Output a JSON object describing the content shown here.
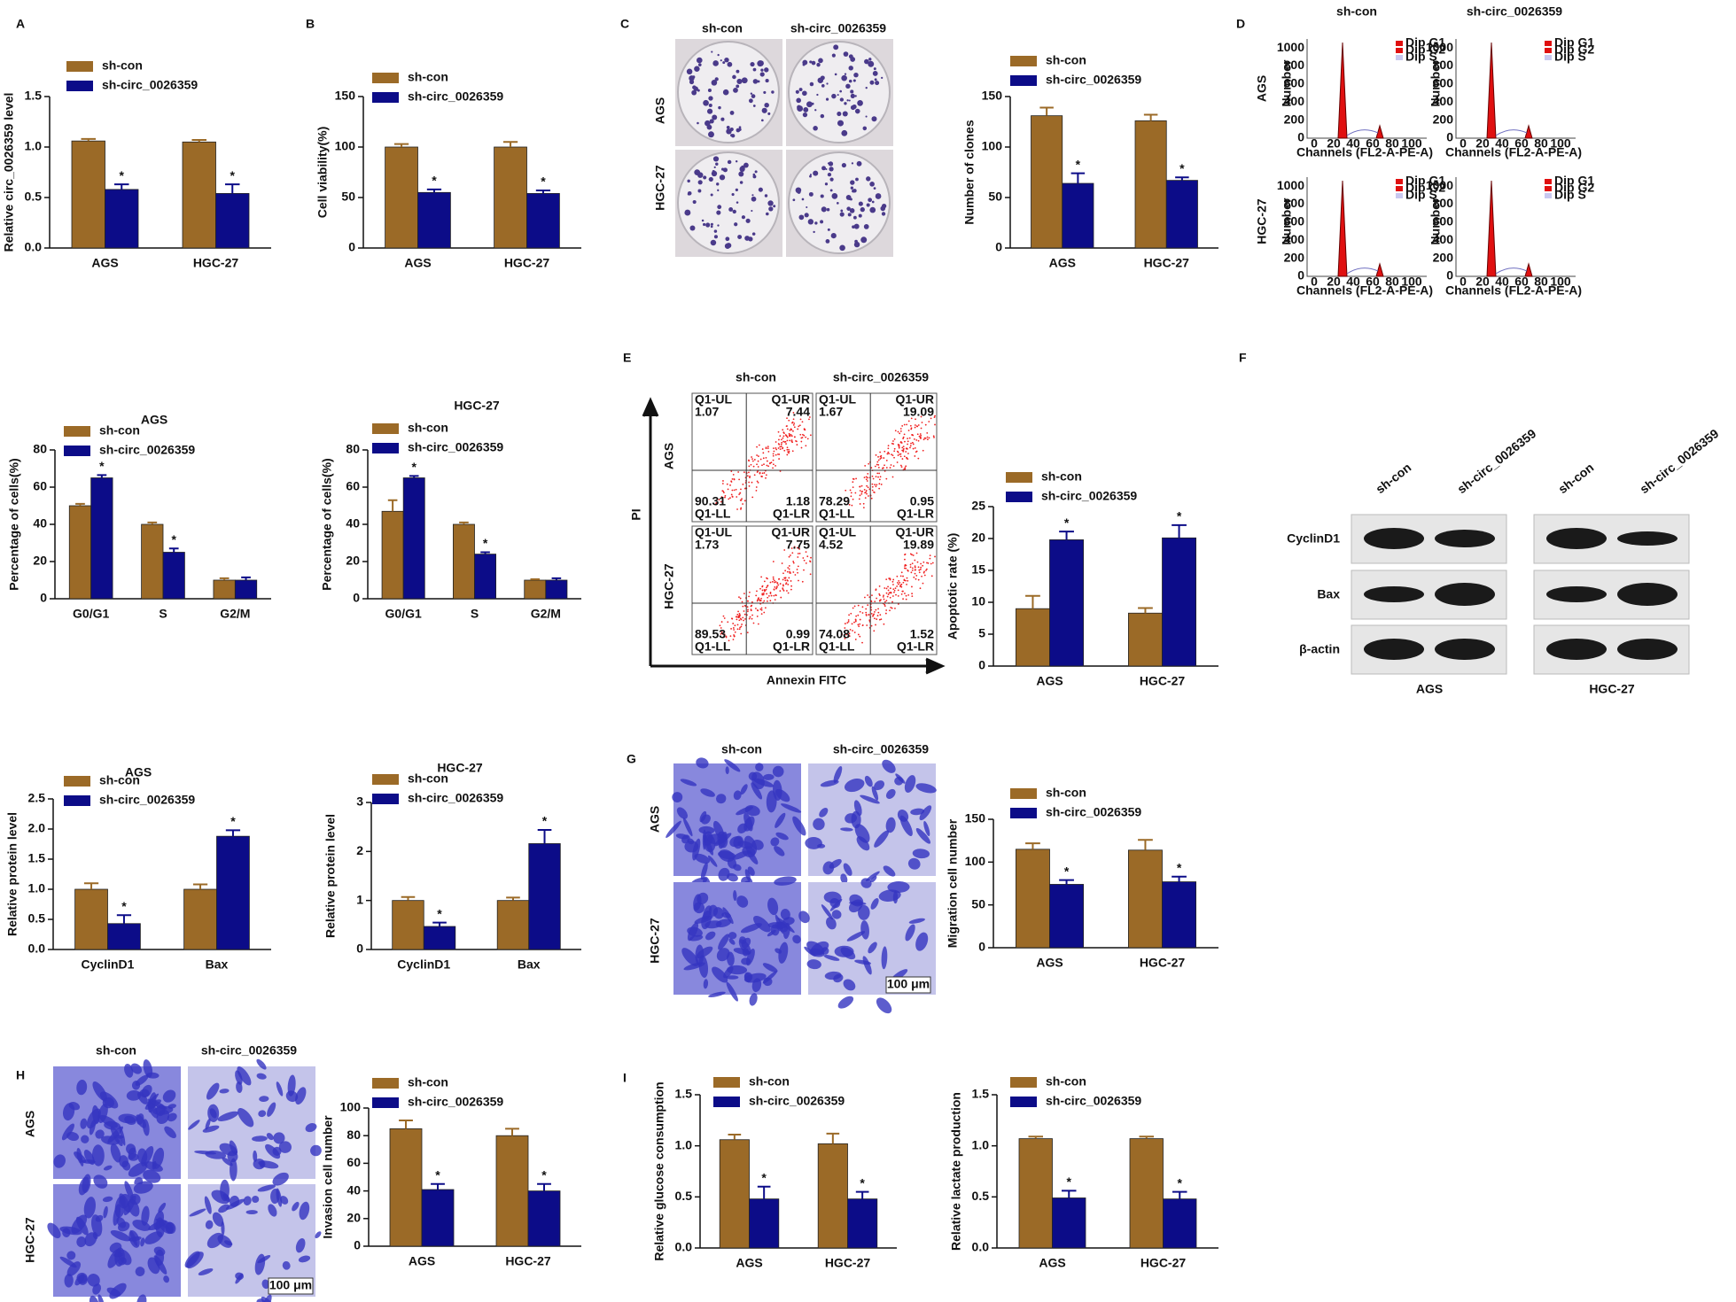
{
  "panel_letters": [
    "A",
    "B",
    "C",
    "D",
    "E",
    "F",
    "G",
    "H",
    "I"
  ],
  "chart_data": [
    {
      "type": "bar",
      "ylabel": "Relative circ_0026359 level",
      "categories": [
        "AGS",
        "HGC-27"
      ],
      "series": [
        {
          "name": "sh-con",
          "color": "#9b6a27",
          "values": [
            1.06,
            1.05
          ],
          "errors": [
            0.02,
            0.02
          ]
        },
        {
          "name": "sh-circ_0026359",
          "color": "#0c0c88",
          "values": [
            0.58,
            0.54
          ],
          "errors": [
            0.05,
            0.09
          ],
          "significance": [
            "*",
            "*"
          ]
        }
      ],
      "ylim": [
        0,
        1.5
      ],
      "yticks": [
        {
          "value": 0,
          "label": "0.0"
        },
        0.5,
        {
          "value": 1,
          "label": "1.0"
        },
        1.5
      ]
    },
    {
      "type": "bar",
      "ylabel": "Cell viability(%)",
      "categories": [
        "AGS",
        "HGC-27"
      ],
      "series": [
        {
          "name": "sh-con",
          "color": "#9b6a27",
          "values": [
            100,
            100
          ],
          "errors": [
            3,
            5
          ]
        },
        {
          "name": "sh-circ_0026359",
          "color": "#0c0c88",
          "values": [
            55,
            54
          ],
          "errors": [
            3,
            3
          ],
          "significance": [
            "*",
            "*"
          ]
        }
      ],
      "ylim": [
        0,
        150
      ],
      "yticks": [
        0,
        50,
        100,
        150
      ]
    },
    {
      "type": "bar",
      "ylabel": "Number of clones",
      "categories": [
        "AGS",
        "HGC-27"
      ],
      "series": [
        {
          "name": "sh-con",
          "color": "#9b6a27",
          "values": [
            131,
            126
          ],
          "errors": [
            8,
            6
          ]
        },
        {
          "name": "sh-circ_0026359",
          "color": "#0c0c88",
          "values": [
            64,
            67
          ],
          "errors": [
            10,
            3
          ],
          "significance": [
            "*",
            "*"
          ]
        }
      ],
      "ylim": [
        0,
        150
      ],
      "yticks": [
        0,
        50,
        100,
        150
      ]
    },
    {
      "type": "bar",
      "title": "AGS",
      "ylabel": "Percentage of cells(%)",
      "categories": [
        "G0/G1",
        "S",
        "G2/M"
      ],
      "series": [
        {
          "name": "sh-con",
          "color": "#9b6a27",
          "values": [
            50,
            40,
            10
          ],
          "errors": [
            1,
            1,
            1
          ]
        },
        {
          "name": "sh-circ_0026359",
          "color": "#0c0c88",
          "values": [
            65,
            25,
            10
          ],
          "errors": [
            1.5,
            2,
            1.5
          ],
          "significance": [
            "*",
            "*",
            null
          ]
        }
      ],
      "ylim": [
        0,
        80
      ],
      "yticks": [
        0,
        20,
        40,
        60,
        80
      ]
    },
    {
      "type": "bar",
      "title": "HGC-27",
      "ylabel": "Percentage of cells(%)",
      "categories": [
        "G0/G1",
        "S",
        "G2/M"
      ],
      "series": [
        {
          "name": "sh-con",
          "color": "#9b6a27",
          "values": [
            47,
            40,
            10
          ],
          "errors": [
            6,
            1,
            0.5
          ]
        },
        {
          "name": "sh-circ_0026359",
          "color": "#0c0c88",
          "values": [
            65,
            24,
            10
          ],
          "errors": [
            1,
            1,
            1
          ],
          "significance": [
            "*",
            "*",
            null
          ]
        }
      ],
      "ylim": [
        0,
        80
      ],
      "yticks": [
        0,
        20,
        40,
        60,
        80
      ]
    },
    {
      "type": "bar",
      "ylabel": "Apoptotic rate (%)",
      "categories": [
        "AGS",
        "HGC-27"
      ],
      "series": [
        {
          "name": "sh-con",
          "color": "#9b6a27",
          "values": [
            9,
            8.3
          ],
          "errors": [
            2,
            0.8
          ]
        },
        {
          "name": "sh-circ_0026359",
          "color": "#0c0c88",
          "values": [
            19.8,
            20.1
          ],
          "errors": [
            1.3,
            2
          ],
          "significance": [
            "*",
            "*"
          ]
        }
      ],
      "ylim": [
        0,
        25
      ],
      "yticks": [
        0,
        5,
        10,
        15,
        20,
        25
      ]
    },
    {
      "type": "bar",
      "title": "AGS",
      "ylabel": "Relative protein level",
      "categories": [
        "CyclinD1",
        "Bax"
      ],
      "series": [
        {
          "name": "sh-con",
          "color": "#9b6a27",
          "values": [
            1.0,
            1.0
          ],
          "errors": [
            0.1,
            0.08
          ]
        },
        {
          "name": "sh-circ_0026359",
          "color": "#0c0c88",
          "values": [
            0.43,
            1.88
          ],
          "errors": [
            0.14,
            0.1
          ],
          "significance": [
            "*",
            "*"
          ]
        }
      ],
      "ylim": [
        0,
        2.5
      ],
      "yticks": [
        {
          "value": 0,
          "label": "0.0"
        },
        0.5,
        {
          "value": 1,
          "label": "1.0"
        },
        1.5,
        {
          "value": 2,
          "label": "2.0"
        },
        2.5
      ]
    },
    {
      "type": "bar",
      "title": "HGC-27",
      "ylabel": "Relative protein level",
      "categories": [
        "CyclinD1",
        "Bax"
      ],
      "series": [
        {
          "name": "sh-con",
          "color": "#9b6a27",
          "values": [
            1.0,
            1.0
          ],
          "errors": [
            0.07,
            0.06
          ]
        },
        {
          "name": "sh-circ_0026359",
          "color": "#0c0c88",
          "values": [
            0.47,
            2.16
          ],
          "errors": [
            0.08,
            0.28
          ],
          "significance": [
            "*",
            "*"
          ]
        }
      ],
      "ylim": [
        0,
        3
      ],
      "yticks": [
        0,
        1,
        2,
        3
      ]
    },
    {
      "type": "bar",
      "ylabel": "Migration cell number",
      "categories": [
        "AGS",
        "HGC-27"
      ],
      "series": [
        {
          "name": "sh-con",
          "color": "#9b6a27",
          "values": [
            115,
            114
          ],
          "errors": [
            7,
            12
          ]
        },
        {
          "name": "sh-circ_0026359",
          "color": "#0c0c88",
          "values": [
            74,
            77
          ],
          "errors": [
            5,
            6
          ],
          "significance": [
            "*",
            "*"
          ]
        }
      ],
      "ylim": [
        0,
        150
      ],
      "yticks": [
        0,
        50,
        100,
        150
      ]
    },
    {
      "type": "bar",
      "ylabel": "Invasion cell number",
      "categories": [
        "AGS",
        "HGC-27"
      ],
      "series": [
        {
          "name": "sh-con",
          "color": "#9b6a27",
          "values": [
            85,
            80
          ],
          "errors": [
            6,
            5
          ]
        },
        {
          "name": "sh-circ_0026359",
          "color": "#0c0c88",
          "values": [
            41,
            40
          ],
          "errors": [
            4,
            5
          ],
          "significance": [
            "*",
            "*"
          ]
        }
      ],
      "ylim": [
        0,
        100
      ],
      "yticks": [
        0,
        20,
        40,
        60,
        80,
        100
      ]
    },
    {
      "type": "bar",
      "ylabel": "Relative glucose consumption",
      "categories": [
        "AGS",
        "HGC-27"
      ],
      "series": [
        {
          "name": "sh-con",
          "color": "#9b6a27",
          "values": [
            1.06,
            1.02
          ],
          "errors": [
            0.05,
            0.1
          ]
        },
        {
          "name": "sh-circ_0026359",
          "color": "#0c0c88",
          "values": [
            0.48,
            0.48
          ],
          "errors": [
            0.12,
            0.07
          ],
          "significance": [
            "*",
            "*"
          ]
        }
      ],
      "ylim": [
        0,
        1.5
      ],
      "yticks": [
        {
          "value": 0,
          "label": "0.0"
        },
        0.5,
        {
          "value": 1,
          "label": "1.0"
        },
        1.5
      ]
    },
    {
      "type": "bar",
      "ylabel": "Relative lactate production",
      "categories": [
        "AGS",
        "HGC-27"
      ],
      "series": [
        {
          "name": "sh-con",
          "color": "#9b6a27",
          "values": [
            1.07,
            1.07
          ],
          "errors": [
            0.02,
            0.02
          ]
        },
        {
          "name": "sh-circ_0026359",
          "color": "#0c0c88",
          "values": [
            0.49,
            0.48
          ],
          "errors": [
            0.07,
            0.07
          ],
          "significance": [
            "*",
            "*"
          ]
        }
      ],
      "ylim": [
        0,
        1.5
      ],
      "yticks": [
        {
          "value": 0,
          "label": "0.0"
        },
        0.5,
        {
          "value": 1,
          "label": "1.0"
        },
        1.5
      ]
    }
  ],
  "colony": {
    "columns": [
      "sh-con",
      "sh-circ_0026359"
    ],
    "rows": [
      "AGS",
      "HGC-27"
    ]
  },
  "cell_cycle_flow": {
    "columns": [
      "sh-con",
      "sh-circ_0026359"
    ],
    "rows": [
      "AGS",
      "HGC-27"
    ],
    "y_axis_label": "Number",
    "x_axis_label": "Channels (FL2-A-PE-A)",
    "legend": [
      "Dip G1",
      "Dip G2",
      "Dip S"
    ],
    "yticks": [
      0,
      200,
      400,
      600,
      800,
      1000
    ],
    "xticks": [
      0,
      20,
      40,
      60,
      80,
      100
    ]
  },
  "apoptosis_flow": {
    "columns": [
      "sh-con",
      "sh-circ_0026359"
    ],
    "rows": [
      "AGS",
      "HGC-27"
    ],
    "y_axis_label": "PI",
    "x_axis_label": "Annexin FITC",
    "quadrant_names": [
      "Q1-UL",
      "Q1-UR",
      "Q1-LL",
      "Q1-LR"
    ],
    "quadrants": [
      [
        [
          1.07,
          7.44,
          90.31,
          1.18
        ],
        [
          1.67,
          19.09,
          78.29,
          0.95
        ]
      ],
      [
        [
          1.73,
          7.75,
          89.53,
          0.99
        ],
        [
          4.52,
          19.89,
          74.08,
          1.52
        ]
      ]
    ]
  },
  "western": {
    "lanes": [
      "sh-con",
      "sh-circ_0026359"
    ],
    "proteins": [
      "CyclinD1",
      "Bax",
      "β-actin"
    ],
    "cell_lines": [
      "AGS",
      "HGC-27"
    ]
  },
  "migration": {
    "columns": [
      "sh-con",
      "sh-circ_0026359"
    ],
    "rows": [
      "AGS",
      "HGC-27"
    ],
    "scale_bar": "100 μm"
  },
  "invasion": {
    "columns": [
      "sh-con",
      "sh-circ_0026359"
    ],
    "rows": [
      "AGS",
      "HGC-27"
    ],
    "scale_bar": "100 μm"
  }
}
